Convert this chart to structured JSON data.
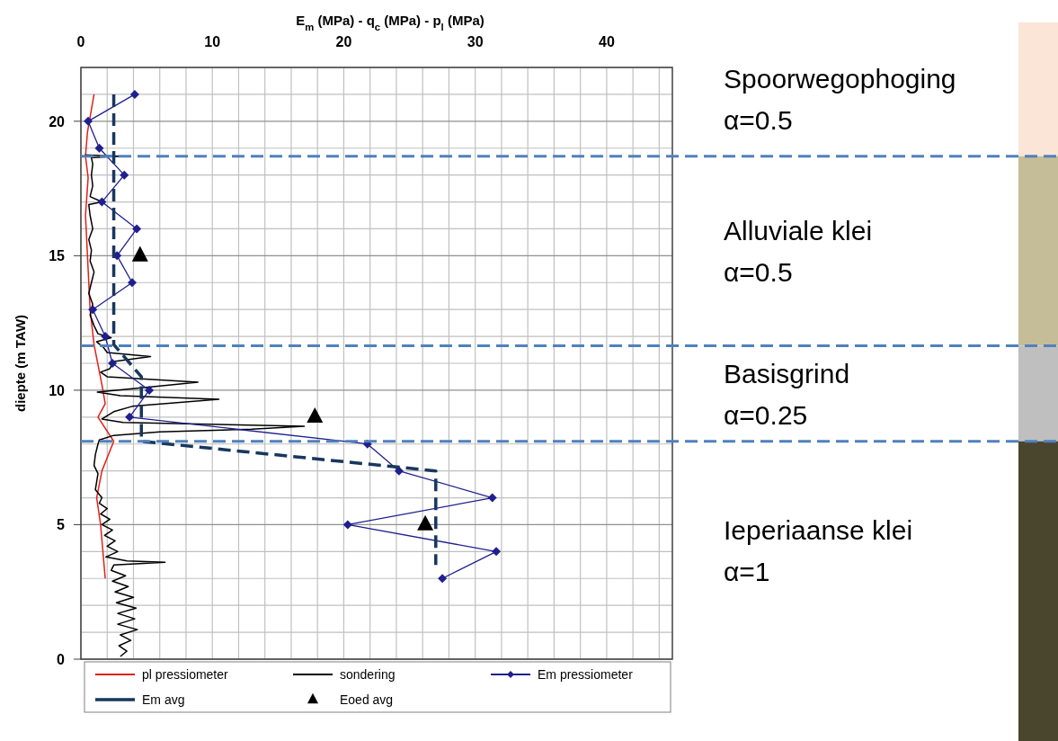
{
  "chart_data": {
    "type": "line",
    "xlabel": "E$_{m}$ (MPa) - q$_{c}$ (MPa) - p$_{l}$ (MPa)",
    "ylabel": "diepte (m TAW)",
    "xlim": [
      0,
      45
    ],
    "ylim": [
      0,
      22
    ],
    "xticks": [
      0,
      {
        "value": 2,
        "label": null
      },
      {
        "value": 4,
        "label": null
      },
      {
        "value": 6,
        "label": null
      },
      {
        "value": 8,
        "label": null
      },
      10,
      {
        "value": 12,
        "label": null
      },
      {
        "value": 14,
        "label": null
      },
      {
        "value": 16,
        "label": null
      },
      {
        "value": 18,
        "label": null
      },
      20,
      {
        "value": 22,
        "label": null
      },
      {
        "value": 24,
        "label": null
      },
      {
        "value": 26,
        "label": null
      },
      {
        "value": 28,
        "label": null
      },
      30,
      {
        "value": 32,
        "label": null
      },
      {
        "value": 34,
        "label": null
      },
      {
        "value": 36,
        "label": null
      },
      {
        "value": 38,
        "label": null
      },
      40,
      {
        "value": 42,
        "label": null
      },
      {
        "value": 44,
        "label": null
      }
    ],
    "yticks": [
      0,
      {
        "value": 1,
        "label": null
      },
      {
        "value": 2,
        "label": null
      },
      {
        "value": 3,
        "label": null
      },
      {
        "value": 4,
        "label": null
      },
      5,
      {
        "value": 6,
        "label": null
      },
      {
        "value": 7,
        "label": null
      },
      {
        "value": 8,
        "label": null
      },
      {
        "value": 9,
        "label": null
      },
      10,
      {
        "value": 11,
        "label": null
      },
      {
        "value": 12,
        "label": null
      },
      {
        "value": 13,
        "label": null
      },
      {
        "value": 14,
        "label": null
      },
      15,
      {
        "value": 16,
        "label": null
      },
      {
        "value": 17,
        "label": null
      },
      {
        "value": 18,
        "label": null
      },
      {
        "value": 19,
        "label": null
      },
      20,
      {
        "value": 21,
        "label": null
      },
      {
        "value": 22,
        "label": null
      }
    ],
    "grid": true,
    "legend": "bottom",
    "series": [
      {
        "name": "pl pressiometer",
        "color": "#e0201b",
        "marker": "none",
        "x": [
          1.0,
          0.5,
          0.35,
          0.55,
          0.35,
          0.55,
          0.7,
          1.0,
          1.6,
          1.85,
          1.3,
          2.5,
          1.6,
          1.2,
          1.5,
          1.85
        ],
        "values": [
          21,
          19.6,
          18.7,
          17.9,
          16.5,
          14.5,
          13,
          11.7,
          10.2,
          9.5,
          9,
          8.1,
          7,
          6,
          5,
          3
        ]
      },
      {
        "name": "sondering",
        "color": "#000000",
        "marker": "none",
        "x": [
          0.3,
          3.0,
          0.8,
          0.9,
          0.8,
          0.9,
          0.7,
          1.6,
          0.6,
          0.7,
          0.9,
          0.6,
          0.8,
          0.7,
          1.0,
          0.8,
          0.6,
          0.9,
          0.7,
          1.0,
          1.3,
          2.3,
          1.2,
          1.7,
          2.0,
          5.3,
          2.5,
          2.2,
          1.5,
          2.0,
          8.9,
          4.8,
          1.25,
          3.0,
          10.5,
          3.9,
          2.5,
          1.6,
          3.2,
          17.0,
          13.0,
          6.0,
          2.5,
          1.4,
          1.3,
          1.1,
          1.0,
          1.3,
          1.2,
          1.1,
          1.6,
          1.4,
          2.0,
          1.5,
          2.2,
          1.6,
          2.4,
          1.8,
          2.6,
          2.0,
          2.8,
          1.9,
          3.5,
          6.4,
          2.5,
          2.3,
          3.4,
          2.4,
          3.6,
          2.6,
          4.0,
          2.7,
          4.2,
          2.8,
          4.1,
          2.8,
          4.3,
          3.0,
          3.8,
          2.9,
          3.5,
          3.0
        ],
        "values": [
          18.75,
          18.7,
          18.65,
          18.4,
          18.0,
          17.6,
          17.2,
          17.0,
          16.9,
          16.5,
          16.0,
          15.6,
          15.2,
          14.8,
          14.4,
          14.0,
          13.6,
          13.2,
          12.8,
          12.4,
          12.1,
          11.95,
          11.8,
          11.6,
          11.4,
          11.25,
          11.07,
          10.8,
          10.67,
          10.5,
          10.3,
          10.1,
          9.93,
          9.8,
          9.66,
          9.4,
          9.2,
          8.93,
          8.8,
          8.66,
          8.55,
          8.45,
          8.32,
          8.15,
          8.0,
          7.6,
          7.2,
          6.9,
          6.6,
          6.3,
          6.0,
          5.8,
          5.6,
          5.4,
          5.2,
          5.0,
          4.8,
          4.6,
          4.4,
          4.2,
          4.0,
          3.8,
          3.65,
          3.6,
          3.5,
          3.3,
          3.1,
          2.9,
          2.7,
          2.5,
          2.3,
          2.1,
          1.9,
          1.7,
          1.5,
          1.3,
          1.1,
          0.9,
          0.7,
          0.5,
          0.3,
          0.1
        ]
      },
      {
        "name": "Em pressiometer",
        "color": "#1f1f8f",
        "marker": "diamond",
        "x": [
          4.1,
          0.55,
          1.4,
          3.3,
          1.6,
          4.25,
          2.75,
          3.9,
          0.9,
          1.85,
          2.4,
          5.2,
          3.7,
          21.8,
          24.2,
          31.3,
          20.3,
          31.6,
          27.5
        ],
        "values": [
          21,
          20,
          19,
          18,
          17,
          16,
          15,
          14,
          13,
          12,
          11,
          10,
          9,
          8,
          7,
          6,
          5,
          4,
          3
        ]
      },
      {
        "name": "Em avg",
        "color": "#17375e",
        "marker": "none",
        "line_style": "dashed",
        "x": [
          2.5,
          2.5,
          4.6,
          4.6,
          27,
          27
        ],
        "values": [
          21,
          11.7,
          10.5,
          8.1,
          7,
          3.5
        ]
      },
      {
        "name": "Eoed avg",
        "type": "scatter",
        "color": "#000000",
        "marker": "triangle",
        "x": [
          4.5,
          17.8,
          26.2
        ],
        "values": [
          15,
          9,
          5
        ]
      }
    ],
    "ref_lines": [
      {
        "axis": "y",
        "value": 18.7,
        "color": "#4f81bd",
        "line_style": "dashed"
      },
      {
        "axis": "y",
        "value": 11.65,
        "color": "#4f81bd",
        "line_style": "dashed"
      },
      {
        "axis": "y",
        "value": 8.1,
        "color": "#4f81bd",
        "line_style": "dashed"
      }
    ],
    "annotations": [
      "Spoorwegophoging\nα=0.5",
      "Alluviale klei\nα=0.5",
      "Basisgrind\nα=0.25",
      "Ieperiaanse klei\nα=1"
    ]
  }
}
